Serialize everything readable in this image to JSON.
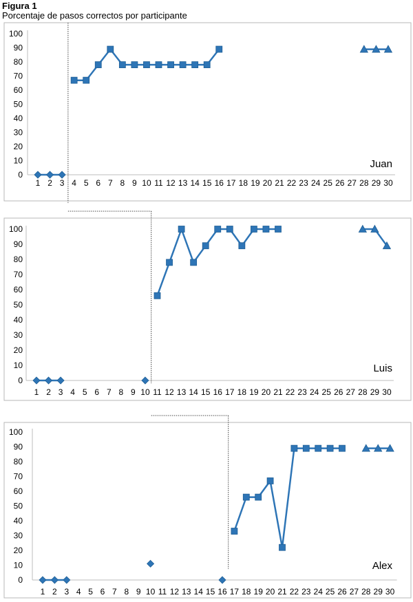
{
  "figure": {
    "title": "Figura 1",
    "subtitle": "Porcentaje de pasos correctos por participante"
  },
  "chart_data": [
    {
      "type": "line",
      "participant": "Juan",
      "x": [
        1,
        2,
        3,
        4,
        5,
        6,
        7,
        8,
        9,
        10,
        11,
        12,
        13,
        14,
        15,
        16,
        17,
        18,
        19,
        20,
        21,
        22,
        23,
        24,
        25,
        26,
        27,
        28,
        29,
        30
      ],
      "ylim": [
        0,
        100
      ],
      "yticks": [
        0,
        10,
        20,
        30,
        40,
        50,
        60,
        70,
        80,
        90,
        100
      ],
      "grid": false,
      "phase_change_after": 3,
      "series": [
        {
          "marker": "diamond",
          "points": [
            [
              1,
              0
            ],
            [
              2,
              0
            ],
            [
              3,
              0
            ]
          ],
          "segments": [
            [
              [
                1,
                0
              ],
              [
                2,
                0
              ],
              [
                3,
                0
              ]
            ]
          ]
        },
        {
          "marker": "square",
          "points": [
            [
              4,
              67
            ],
            [
              5,
              67
            ],
            [
              6,
              78
            ],
            [
              7,
              89
            ],
            [
              8,
              78
            ],
            [
              9,
              78
            ],
            [
              10,
              78
            ],
            [
              11,
              78
            ],
            [
              12,
              78
            ],
            [
              13,
              78
            ],
            [
              14,
              78
            ],
            [
              15,
              78
            ],
            [
              16,
              89
            ]
          ],
          "segments": [
            [
              [
                4,
                67
              ],
              [
                5,
                67
              ],
              [
                6,
                78
              ],
              [
                7,
                89
              ],
              [
                8,
                78
              ],
              [
                9,
                78
              ],
              [
                10,
                78
              ],
              [
                11,
                78
              ],
              [
                12,
                78
              ],
              [
                13,
                78
              ],
              [
                14,
                78
              ],
              [
                15,
                78
              ],
              [
                16,
                89
              ]
            ]
          ]
        },
        {
          "marker": "triangle",
          "points": [
            [
              28,
              89
            ],
            [
              29,
              89
            ],
            [
              30,
              89
            ]
          ],
          "segments": [
            [
              [
                28,
                89
              ],
              [
                29,
                89
              ],
              [
                30,
                89
              ]
            ]
          ]
        }
      ]
    },
    {
      "type": "line",
      "participant": "Luis",
      "x": [
        1,
        2,
        3,
        4,
        5,
        6,
        7,
        8,
        9,
        10,
        11,
        12,
        13,
        14,
        15,
        16,
        17,
        18,
        19,
        20,
        21,
        22,
        23,
        24,
        25,
        26,
        27,
        28,
        29,
        30
      ],
      "ylim": [
        0,
        100
      ],
      "yticks": [
        0,
        10,
        20,
        30,
        40,
        50,
        60,
        70,
        80,
        90,
        100
      ],
      "grid": false,
      "phase_change_after": 10,
      "series": [
        {
          "marker": "diamond",
          "points": [
            [
              1,
              0
            ],
            [
              2,
              0
            ],
            [
              3,
              0
            ],
            [
              10,
              0
            ]
          ],
          "segments": [
            [
              [
                1,
                0
              ],
              [
                2,
                0
              ],
              [
                3,
                0
              ]
            ]
          ]
        },
        {
          "marker": "square",
          "points": [
            [
              11,
              56
            ],
            [
              12,
              78
            ],
            [
              13,
              100
            ],
            [
              14,
              78
            ],
            [
              15,
              89
            ],
            [
              16,
              100
            ],
            [
              17,
              100
            ],
            [
              18,
              89
            ],
            [
              19,
              100
            ],
            [
              20,
              100
            ],
            [
              21,
              100
            ]
          ],
          "segments": [
            [
              [
                11,
                56
              ],
              [
                12,
                78
              ],
              [
                13,
                100
              ],
              [
                14,
                78
              ],
              [
                15,
                89
              ],
              [
                16,
                100
              ],
              [
                17,
                100
              ],
              [
                18,
                89
              ],
              [
                19,
                100
              ],
              [
                20,
                100
              ],
              [
                21,
                100
              ]
            ]
          ]
        },
        {
          "marker": "triangle",
          "points": [
            [
              28,
              100
            ],
            [
              29,
              100
            ],
            [
              30,
              89
            ]
          ],
          "segments": [
            [
              [
                28,
                100
              ],
              [
                29,
                100
              ],
              [
                30,
                89
              ]
            ]
          ]
        }
      ]
    },
    {
      "type": "line",
      "participant": "Alex",
      "x": [
        1,
        2,
        3,
        4,
        5,
        6,
        7,
        8,
        9,
        10,
        11,
        12,
        13,
        14,
        15,
        16,
        17,
        18,
        19,
        20,
        21,
        22,
        23,
        24,
        25,
        26,
        27,
        28,
        29,
        30
      ],
      "ylim": [
        0,
        100
      ],
      "yticks": [
        0,
        10,
        20,
        30,
        40,
        50,
        60,
        70,
        80,
        90,
        100
      ],
      "grid": false,
      "phase_change_after": 16,
      "series": [
        {
          "marker": "diamond",
          "points": [
            [
              1,
              0
            ],
            [
              2,
              0
            ],
            [
              3,
              0
            ],
            [
              10,
              11
            ],
            [
              16,
              0
            ]
          ],
          "segments": [
            [
              [
                1,
                0
              ],
              [
                2,
                0
              ],
              [
                3,
                0
              ]
            ]
          ]
        },
        {
          "marker": "square",
          "points": [
            [
              17,
              33
            ],
            [
              18,
              56
            ],
            [
              19,
              56
            ],
            [
              20,
              67
            ],
            [
              21,
              22
            ],
            [
              22,
              89
            ],
            [
              23,
              89
            ],
            [
              24,
              89
            ],
            [
              25,
              89
            ],
            [
              26,
              89
            ]
          ],
          "segments": [
            [
              [
                17,
                33
              ],
              [
                18,
                56
              ],
              [
                19,
                56
              ],
              [
                20,
                67
              ],
              [
                21,
                22
              ],
              [
                22,
                89
              ],
              [
                23,
                89
              ],
              [
                24,
                89
              ],
              [
                25,
                89
              ],
              [
                26,
                89
              ]
            ]
          ]
        },
        {
          "marker": "triangle",
          "points": [
            [
              28,
              89
            ],
            [
              29,
              89
            ],
            [
              30,
              89
            ]
          ],
          "segments": [
            [
              [
                28,
                89
              ],
              [
                29,
                89
              ],
              [
                30,
                89
              ]
            ]
          ]
        }
      ]
    }
  ]
}
